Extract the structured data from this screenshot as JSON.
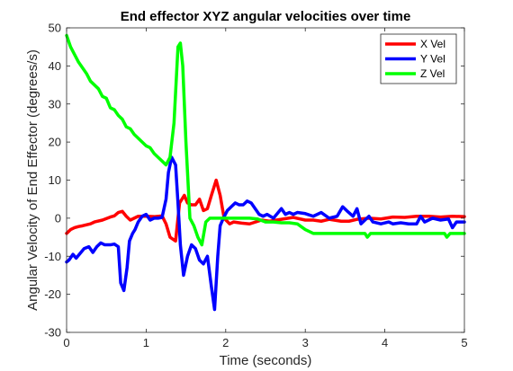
{
  "chart_data": {
    "type": "line",
    "title": "End effector XYZ angular velocities over time",
    "xlabel": "Time (seconds)",
    "ylabel": "Angular Velocity of End Effector (degrees/s)",
    "xlim": [
      0,
      5
    ],
    "ylim": [
      -30,
      50
    ],
    "xticks": [
      "0",
      "1",
      "2",
      "3",
      "4",
      "5"
    ],
    "yticks": [
      "-30",
      "-20",
      "-10",
      "0",
      "10",
      "20",
      "30",
      "40",
      "50"
    ],
    "grid": false,
    "legend_position": "top-right",
    "series": [
      {
        "name": "X Vel",
        "color": "#ff0000",
        "points": [
          [
            0,
            -4
          ],
          [
            0.05,
            -3
          ],
          [
            0.1,
            -2.5
          ],
          [
            0.15,
            -2.2
          ],
          [
            0.2,
            -2
          ],
          [
            0.3,
            -1.5
          ],
          [
            0.35,
            -1
          ],
          [
            0.45,
            -0.5
          ],
          [
            0.55,
            0.3
          ],
          [
            0.6,
            0.6
          ],
          [
            0.65,
            1.5
          ],
          [
            0.7,
            1.8
          ],
          [
            0.75,
            0.5
          ],
          [
            0.8,
            -0.5
          ],
          [
            0.9,
            0.5
          ],
          [
            1.0,
            0.5
          ],
          [
            1.1,
            0.4
          ],
          [
            1.2,
            0.6
          ],
          [
            1.25,
            -1.5
          ],
          [
            1.3,
            -5
          ],
          [
            1.37,
            -6
          ],
          [
            1.42,
            4
          ],
          [
            1.48,
            6
          ],
          [
            1.52,
            4
          ],
          [
            1.57,
            3.5
          ],
          [
            1.62,
            3.5
          ],
          [
            1.67,
            5
          ],
          [
            1.72,
            2
          ],
          [
            1.77,
            2.5
          ],
          [
            1.82,
            6
          ],
          [
            1.88,
            10
          ],
          [
            1.93,
            6
          ],
          [
            1.98,
            0
          ],
          [
            2.05,
            -1.5
          ],
          [
            2.1,
            -1
          ],
          [
            2.2,
            -1.3
          ],
          [
            2.3,
            -1.5
          ],
          [
            2.45,
            -0.5
          ],
          [
            2.55,
            -0.8
          ],
          [
            2.7,
            -0.3
          ],
          [
            2.85,
            0.2
          ],
          [
            3.0,
            -0.5
          ],
          [
            3.1,
            -0.5
          ],
          [
            3.2,
            -0.8
          ],
          [
            3.3,
            -0.3
          ],
          [
            3.45,
            -0.8
          ],
          [
            3.55,
            -0.8
          ],
          [
            3.65,
            -0.3
          ],
          [
            3.8,
            0
          ],
          [
            3.95,
            -0.2
          ],
          [
            4.1,
            0.3
          ],
          [
            4.25,
            0.2
          ],
          [
            4.4,
            0.5
          ],
          [
            4.55,
            0.5
          ],
          [
            4.7,
            0.3
          ],
          [
            4.85,
            0.5
          ],
          [
            5.0,
            0.4
          ]
        ]
      },
      {
        "name": "Y Vel",
        "color": "#0000ff",
        "points": [
          [
            0,
            -11.5
          ],
          [
            0.03,
            -11
          ],
          [
            0.08,
            -9.5
          ],
          [
            0.12,
            -10.5
          ],
          [
            0.18,
            -9
          ],
          [
            0.22,
            -8
          ],
          [
            0.28,
            -7.5
          ],
          [
            0.33,
            -9
          ],
          [
            0.38,
            -7.5
          ],
          [
            0.43,
            -6.5
          ],
          [
            0.48,
            -7
          ],
          [
            0.55,
            -7
          ],
          [
            0.6,
            -6.8
          ],
          [
            0.65,
            -7.5
          ],
          [
            0.68,
            -17
          ],
          [
            0.72,
            -19
          ],
          [
            0.76,
            -13
          ],
          [
            0.79,
            -6
          ],
          [
            0.83,
            -4
          ],
          [
            0.86,
            -3
          ],
          [
            0.9,
            -1
          ],
          [
            0.95,
            0.5
          ],
          [
            1.0,
            1
          ],
          [
            1.05,
            -0.5
          ],
          [
            1.1,
            0
          ],
          [
            1.15,
            0
          ],
          [
            1.2,
            0.2
          ],
          [
            1.25,
            5
          ],
          [
            1.28,
            12
          ],
          [
            1.32,
            16
          ],
          [
            1.37,
            14
          ],
          [
            1.4,
            4
          ],
          [
            1.43,
            -7
          ],
          [
            1.47,
            -15
          ],
          [
            1.52,
            -10
          ],
          [
            1.57,
            -7
          ],
          [
            1.62,
            -8
          ],
          [
            1.67,
            -11
          ],
          [
            1.72,
            -12
          ],
          [
            1.77,
            -10
          ],
          [
            1.82,
            -18
          ],
          [
            1.86,
            -24
          ],
          [
            1.9,
            -10
          ],
          [
            1.93,
            -2
          ],
          [
            1.97,
            0
          ],
          [
            2.02,
            2
          ],
          [
            2.07,
            3
          ],
          [
            2.12,
            4
          ],
          [
            2.17,
            3.5
          ],
          [
            2.22,
            3.5
          ],
          [
            2.27,
            4.5
          ],
          [
            2.32,
            4
          ],
          [
            2.37,
            2.5
          ],
          [
            2.42,
            1
          ],
          [
            2.47,
            0.5
          ],
          [
            2.52,
            1
          ],
          [
            2.6,
            0
          ],
          [
            2.7,
            2.5
          ],
          [
            2.75,
            1
          ],
          [
            2.8,
            1.5
          ],
          [
            2.85,
            1
          ],
          [
            2.9,
            1.5
          ],
          [
            3.0,
            1.2
          ],
          [
            3.1,
            0.5
          ],
          [
            3.2,
            1.5
          ],
          [
            3.3,
            0
          ],
          [
            3.4,
            0.5
          ],
          [
            3.47,
            3
          ],
          [
            3.52,
            2
          ],
          [
            3.6,
            0.5
          ],
          [
            3.65,
            2.5
          ],
          [
            3.7,
            -1.5
          ],
          [
            3.8,
            0.5
          ],
          [
            3.85,
            -1
          ],
          [
            3.95,
            -1.5
          ],
          [
            4.05,
            -1
          ],
          [
            4.1,
            -1.5
          ],
          [
            4.2,
            -1.2
          ],
          [
            4.3,
            -1.5
          ],
          [
            4.4,
            -1.5
          ],
          [
            4.45,
            0.5
          ],
          [
            4.5,
            -1
          ],
          [
            4.6,
            0
          ],
          [
            4.7,
            -0.5
          ],
          [
            4.8,
            -0.2
          ],
          [
            4.85,
            -2.5
          ],
          [
            4.9,
            -1
          ],
          [
            5.0,
            -1
          ]
        ]
      },
      {
        "name": "Z Vel",
        "color": "#00ff00",
        "points": [
          [
            0,
            48
          ],
          [
            0.05,
            45
          ],
          [
            0.1,
            43
          ],
          [
            0.15,
            41
          ],
          [
            0.2,
            39.5
          ],
          [
            0.25,
            38
          ],
          [
            0.3,
            36
          ],
          [
            0.35,
            35
          ],
          [
            0.4,
            34
          ],
          [
            0.45,
            32
          ],
          [
            0.5,
            31.5
          ],
          [
            0.55,
            29
          ],
          [
            0.6,
            28.5
          ],
          [
            0.65,
            27
          ],
          [
            0.7,
            26
          ],
          [
            0.75,
            24
          ],
          [
            0.8,
            23.5
          ],
          [
            0.85,
            22
          ],
          [
            0.9,
            21
          ],
          [
            0.95,
            20
          ],
          [
            1.0,
            19
          ],
          [
            1.05,
            18.5
          ],
          [
            1.1,
            17
          ],
          [
            1.15,
            16
          ],
          [
            1.2,
            15
          ],
          [
            1.25,
            14
          ],
          [
            1.3,
            16
          ],
          [
            1.35,
            25
          ],
          [
            1.4,
            45
          ],
          [
            1.43,
            46
          ],
          [
            1.46,
            40
          ],
          [
            1.5,
            20
          ],
          [
            1.55,
            0
          ],
          [
            1.6,
            -2
          ],
          [
            1.65,
            -5
          ],
          [
            1.7,
            -7
          ],
          [
            1.75,
            -1
          ],
          [
            1.8,
            0
          ],
          [
            1.9,
            0
          ],
          [
            2.0,
            0
          ],
          [
            2.1,
            0
          ],
          [
            2.2,
            0
          ],
          [
            2.3,
            0
          ],
          [
            2.4,
            -0.2
          ],
          [
            2.5,
            -1
          ],
          [
            2.6,
            -1
          ],
          [
            2.7,
            -1.2
          ],
          [
            2.8,
            -1.2
          ],
          [
            2.9,
            -1.5
          ],
          [
            3.0,
            -3
          ],
          [
            3.05,
            -3.5
          ],
          [
            3.1,
            -4
          ],
          [
            3.2,
            -4
          ],
          [
            3.3,
            -4
          ],
          [
            3.4,
            -4
          ],
          [
            3.5,
            -4
          ],
          [
            3.6,
            -4
          ],
          [
            3.7,
            -4
          ],
          [
            3.75,
            -4
          ],
          [
            3.78,
            -5
          ],
          [
            3.82,
            -4
          ],
          [
            3.9,
            -4
          ],
          [
            4.0,
            -4
          ],
          [
            4.1,
            -4
          ],
          [
            4.2,
            -4
          ],
          [
            4.3,
            -4
          ],
          [
            4.4,
            -4
          ],
          [
            4.5,
            -4
          ],
          [
            4.6,
            -4
          ],
          [
            4.7,
            -4
          ],
          [
            4.75,
            -4
          ],
          [
            4.78,
            -5
          ],
          [
            4.82,
            -4
          ],
          [
            4.9,
            -4
          ],
          [
            5.0,
            -4
          ]
        ]
      }
    ]
  }
}
